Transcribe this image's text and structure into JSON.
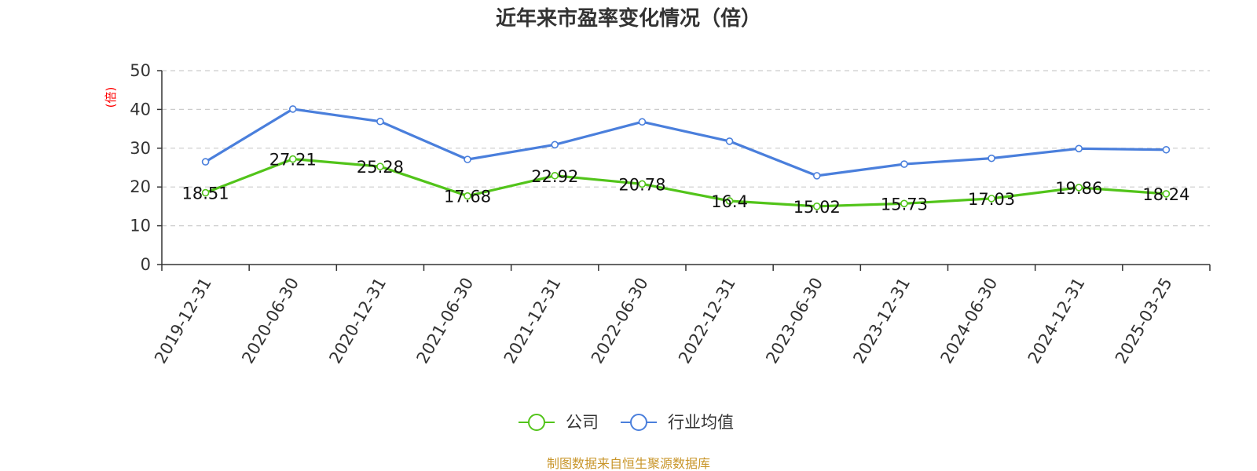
{
  "chart_data": {
    "type": "line",
    "title": "近年来市盈率变化情况（倍）",
    "ylabel": "(倍)",
    "xlabel": "",
    "ylim": [
      0,
      50
    ],
    "yticks": [
      0,
      10,
      20,
      30,
      40,
      50
    ],
    "grid": true,
    "legend_position": "bottom",
    "categories": [
      "2019-12-31",
      "2020-06-30",
      "2020-12-31",
      "2021-06-30",
      "2021-12-31",
      "2022-06-30",
      "2022-12-31",
      "2023-06-30",
      "2023-12-31",
      "2024-06-30",
      "2024-12-31",
      "2025-03-25"
    ],
    "series": [
      {
        "name": "公司",
        "color": "#52c41a",
        "values": [
          18.51,
          27.21,
          25.28,
          17.68,
          22.92,
          20.78,
          16.4,
          15.02,
          15.73,
          17.03,
          19.86,
          18.24
        ],
        "labels": [
          "18.51",
          "27.21",
          "25.28",
          "17.68",
          "22.92",
          "20.78",
          "16.4",
          "15.02",
          "15.73",
          "17.03",
          "19.86",
          "18.24"
        ]
      },
      {
        "name": "行业均值",
        "color": "#4a7fdc",
        "values": [
          26.5,
          40.1,
          36.9,
          27.1,
          30.9,
          36.8,
          31.8,
          22.9,
          25.9,
          27.4,
          29.9,
          29.6
        ]
      }
    ]
  },
  "source": "制图数据来自恒生聚源数据库",
  "colors": {
    "source_text": "#c9962b",
    "axis": "#333333",
    "grid": "#cccccc",
    "unit_label": "#ff0000"
  }
}
